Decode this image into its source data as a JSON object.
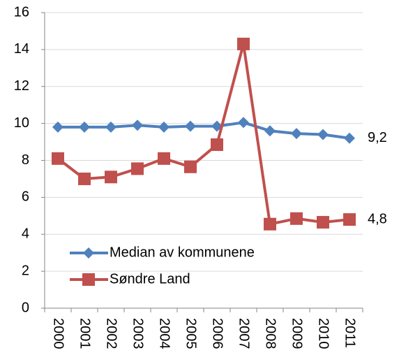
{
  "chart_data": {
    "type": "line",
    "categories": [
      "2000",
      "2001",
      "2002",
      "2003",
      "2004",
      "2005",
      "2006",
      "2007",
      "2008",
      "2009",
      "2010",
      "2011"
    ],
    "series": [
      {
        "name": "Median av kommunene",
        "color": "#4f81bd",
        "marker": "diamond",
        "values": [
          9.8,
          9.8,
          9.8,
          9.9,
          9.8,
          9.85,
          9.85,
          10.05,
          9.6,
          9.45,
          9.4,
          9.2
        ],
        "value_labels": [
          null,
          null,
          null,
          null,
          null,
          null,
          null,
          null,
          null,
          null,
          null,
          "9,2"
        ]
      },
      {
        "name": "Søndre Land",
        "color": "#c0504d",
        "marker": "square",
        "values": [
          8.1,
          7.0,
          7.1,
          7.55,
          8.1,
          7.65,
          8.85,
          14.3,
          4.55,
          4.85,
          4.65,
          4.8
        ],
        "value_labels": [
          null,
          null,
          null,
          null,
          null,
          null,
          null,
          null,
          null,
          null,
          null,
          "4,8"
        ]
      }
    ],
    "ylim": [
      0,
      16
    ],
    "yticks": [
      0,
      2,
      4,
      6,
      8,
      10,
      12,
      14,
      16
    ],
    "grid": true,
    "legend": "lower left"
  }
}
